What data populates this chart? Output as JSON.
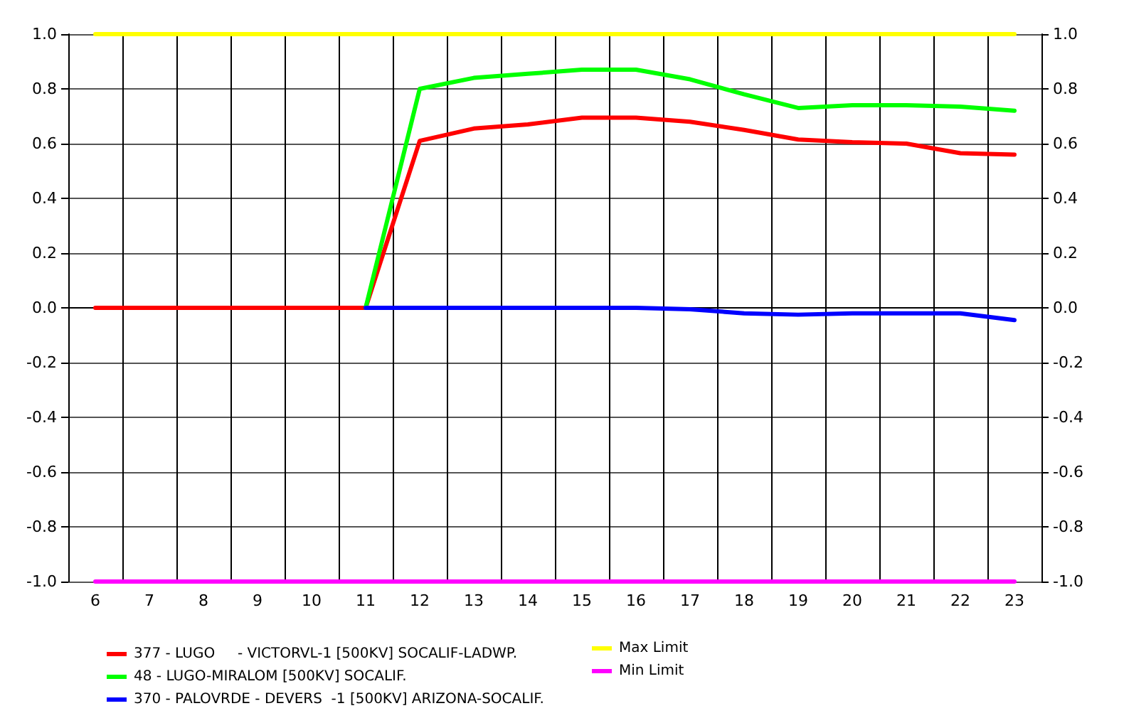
{
  "chart_data": {
    "type": "line",
    "categories": [
      "6",
      "7",
      "8",
      "9",
      "10",
      "11",
      "12",
      "13",
      "14",
      "15",
      "16",
      "17",
      "18",
      "19",
      "20",
      "21",
      "22",
      "23"
    ],
    "ylim": [
      -1,
      1
    ],
    "yticks": [
      {
        "value": -1,
        "label": "-1.0"
      },
      {
        "value": -0.8,
        "label": "-0.8"
      },
      {
        "value": -0.6,
        "label": "-0.6"
      },
      {
        "value": -0.4,
        "label": "-0.4"
      },
      {
        "value": -0.2,
        "label": "-0.2"
      },
      {
        "value": 0,
        "label": "0.0"
      },
      {
        "value": 0.2,
        "label": "0.2"
      },
      {
        "value": 0.4,
        "label": "0.4"
      },
      {
        "value": 0.6,
        "label": "0.6"
      },
      {
        "value": 0.8,
        "label": "0.8"
      },
      {
        "value": 1,
        "label": "1.0"
      }
    ],
    "y2lim": [
      -1,
      1
    ],
    "y2ticks": [
      {
        "value": -1,
        "label": "-1.0"
      },
      {
        "value": -0.8,
        "label": "-0.8"
      },
      {
        "value": -0.6,
        "label": "-0.6"
      },
      {
        "value": -0.4,
        "label": "-0.4"
      },
      {
        "value": -0.2,
        "label": "-0.2"
      },
      {
        "value": 0,
        "label": "0.0"
      },
      {
        "value": 0.2,
        "label": "0.2"
      },
      {
        "value": 0.4,
        "label": "0.4"
      },
      {
        "value": 0.6,
        "label": "0.6"
      },
      {
        "value": 0.8,
        "label": "0.8"
      },
      {
        "value": 1,
        "label": "1.0"
      }
    ],
    "grid": true,
    "legend": "bottom",
    "marker": "none",
    "line_style": "solid",
    "series": [
      {
        "name": "377 - LUGO     - VICTORVL-1 [500KV] SOCALIF-LADWP.",
        "color": "#ff0000",
        "values": [
          0,
          0,
          0,
          0,
          0,
          0,
          0.61,
          0.655,
          0.67,
          0.695,
          0.695,
          0.68,
          0.65,
          0.615,
          0.605,
          0.6,
          0.565,
          0.56
        ]
      },
      {
        "name": "48 - LUGO-MIRALOM [500KV] SOCALIF.",
        "color": "#00ff00",
        "values": [
          null,
          null,
          null,
          null,
          null,
          0,
          0.8,
          0.84,
          0.855,
          0.87,
          0.87,
          0.835,
          0.78,
          0.73,
          0.74,
          0.74,
          0.735,
          0.72
        ]
      },
      {
        "name": "370 - PALOVRDE - DEVERS  -1 [500KV] ARIZONA-SOCALIF.",
        "color": "#0000ff",
        "values": [
          null,
          null,
          null,
          null,
          null,
          0,
          0,
          0,
          0,
          0,
          0,
          -0.005,
          -0.02,
          -0.025,
          -0.02,
          -0.02,
          -0.02,
          -0.045
        ]
      },
      {
        "name": "Max Limit",
        "color": "#ffff00",
        "values": [
          1,
          1,
          1,
          1,
          1,
          1,
          1,
          1,
          1,
          1,
          1,
          1,
          1,
          1,
          1,
          1,
          1,
          1
        ]
      },
      {
        "name": "Min Limit",
        "color": "#ff00ff",
        "values": [
          -1,
          -1,
          -1,
          -1,
          -1,
          -1,
          -1,
          -1,
          -1,
          -1,
          -1,
          -1,
          -1,
          -1,
          -1,
          -1,
          -1,
          -1
        ]
      }
    ]
  }
}
